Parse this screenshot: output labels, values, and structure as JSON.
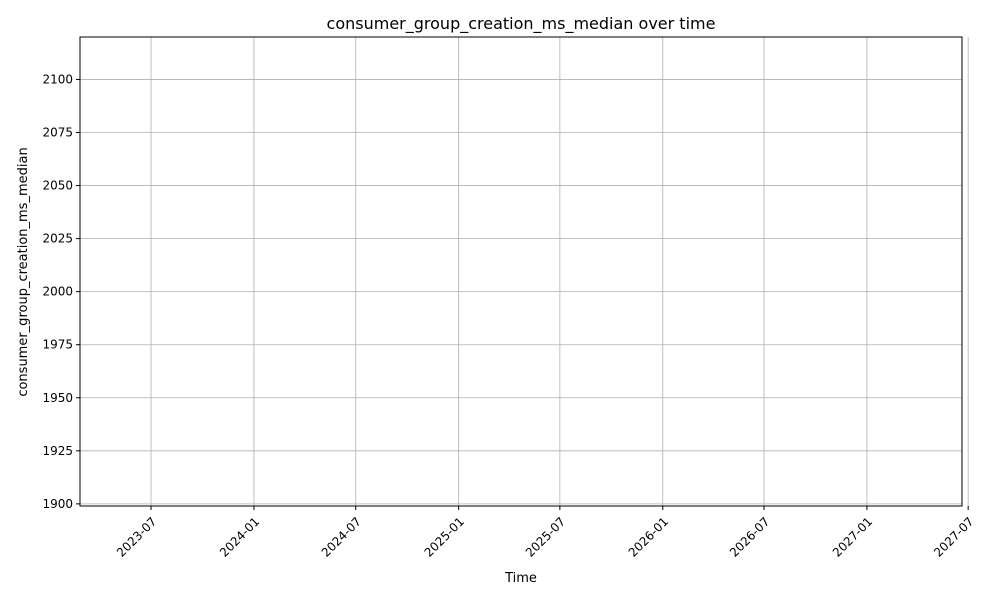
{
  "chart_data": {
    "type": "line",
    "title": "consumer_group_creation_ms_median over time",
    "xlabel": "Time",
    "ylabel": "consumer_group_creation_ms_median",
    "x_ticks": [
      "2023-07",
      "2024-01",
      "2024-07",
      "2025-01",
      "2025-07",
      "2026-01",
      "2026-07",
      "2027-01",
      "2027-07"
    ],
    "y_ticks": [
      1900,
      1925,
      1950,
      1975,
      2000,
      2025,
      2050,
      2075,
      2100
    ],
    "xlim": [
      "2023-02-24",
      "2027-06-20"
    ],
    "ylim": [
      1899,
      2120
    ],
    "grid": true,
    "series": [
      {
        "x": [],
        "values": []
      }
    ]
  }
}
